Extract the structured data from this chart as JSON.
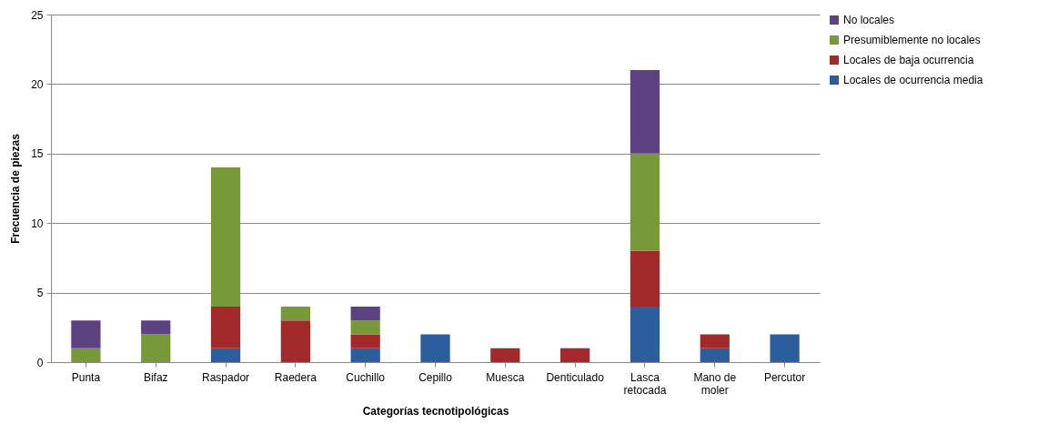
{
  "chart_data": {
    "type": "bar",
    "stacked": true,
    "xlabel": "Categorías tecnotipológicas",
    "ylabel": "Frecuencia de piezas",
    "categories": [
      "Punta",
      "Bifaz",
      "Raspador",
      "Raedera",
      "Cuchillo",
      "Cepillo",
      "Muesca",
      "Denticulado",
      "Lasca retocada",
      "Mano de moler",
      "Percutor"
    ],
    "series": [
      {
        "name": "Locales de ocurrencia media",
        "color": "#2c5d9c",
        "values": [
          null,
          null,
          1,
          null,
          1,
          2,
          null,
          null,
          4,
          1,
          2
        ]
      },
      {
        "name": "Locales de baja ocurrencia",
        "color": "#a32a2a",
        "values": [
          null,
          null,
          3,
          3,
          1,
          null,
          1,
          1,
          4,
          1,
          null
        ]
      },
      {
        "name": "Presumiblemente no locales",
        "color": "#77993a",
        "values": [
          1,
          2,
          10,
          1,
          1,
          null,
          null,
          null,
          7,
          null,
          null
        ]
      },
      {
        "name": "No locales",
        "color": "#5d4282",
        "values": [
          2,
          1,
          null,
          null,
          1,
          null,
          null,
          null,
          6,
          null,
          null
        ]
      }
    ],
    "ylim": [
      0,
      25
    ],
    "yticks": [
      0,
      5,
      10,
      15,
      20,
      25
    ],
    "grid": "y",
    "legend": "right"
  }
}
